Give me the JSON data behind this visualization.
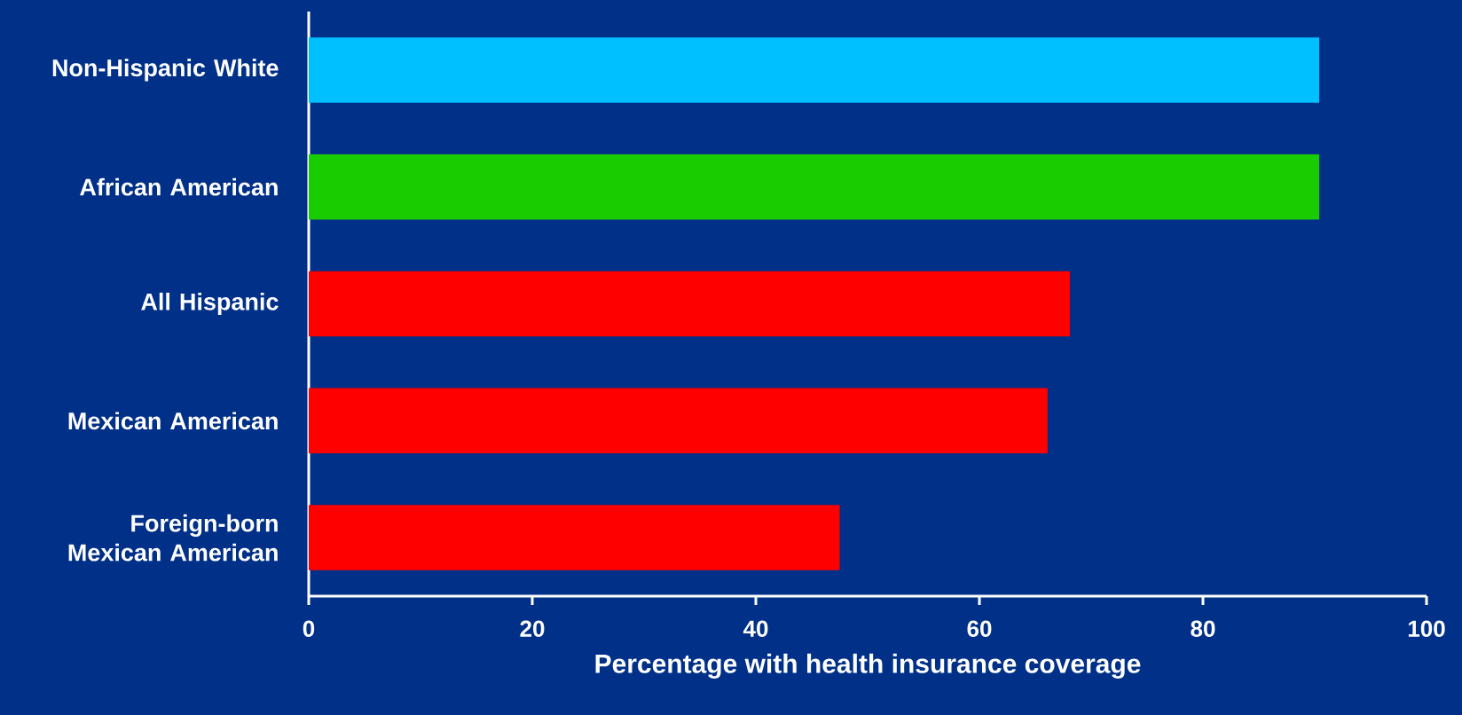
{
  "chart_data": {
    "type": "bar",
    "orientation": "horizontal",
    "categories": [
      "Non-Hispanic White",
      "African American",
      "All Hispanic",
      "Mexican American",
      "Foreign-born Mexican American"
    ],
    "values": [
      90.4,
      90.4,
      68.1,
      66.1,
      47.5
    ],
    "colors": [
      "#00c0ff",
      "#18cc00",
      "#ff0000",
      "#ff0000",
      "#ff0000"
    ],
    "xlim": [
      0,
      100
    ],
    "xticks": [
      0,
      20,
      40,
      60,
      80,
      100
    ],
    "xlabel": "Percentage with health insurance coverage"
  }
}
